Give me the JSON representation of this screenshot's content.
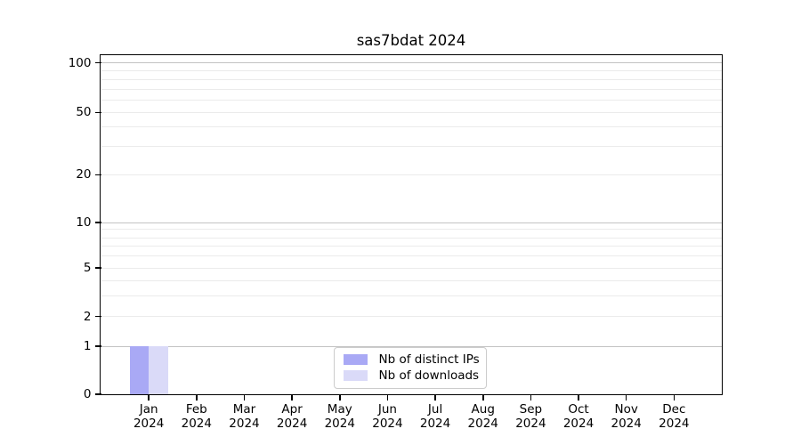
{
  "figure": {
    "title": "sas7bdat 2024"
  },
  "colors": {
    "distinct_ips": "#a9a9f5",
    "downloads": "#dadaf8",
    "grid_major": "#c3c3c3",
    "grid_minor": "#ebebeb",
    "axis": "#000000",
    "legend_border": "#cccccc",
    "background": "#ffffff"
  },
  "y_axis": {
    "labeled_ticks": [
      "100",
      "50",
      "20",
      "10",
      "5",
      "2",
      "1",
      "0"
    ],
    "labeled_tick_values": [
      100,
      50,
      20,
      10,
      5,
      2,
      1,
      0
    ],
    "minor_tick_values": [
      90,
      80,
      70,
      60,
      40,
      30,
      9,
      8,
      7,
      6,
      4,
      3
    ],
    "major_grid_values": [
      100,
      10,
      1
    ]
  },
  "x_axis": {
    "months": [
      "Jan",
      "Feb",
      "Mar",
      "Apr",
      "May",
      "Jun",
      "Jul",
      "Aug",
      "Sep",
      "Oct",
      "Nov",
      "Dec"
    ],
    "year": "2024"
  },
  "legend": {
    "items": [
      {
        "label": "Nb of distinct IPs",
        "color_key": "distinct_ips"
      },
      {
        "label": "Nb of downloads",
        "color_key": "downloads"
      }
    ]
  },
  "chart_data": {
    "type": "bar",
    "title": "sas7bdat 2024",
    "categories": [
      "Jan 2024",
      "Feb 2024",
      "Mar 2024",
      "Apr 2024",
      "May 2024",
      "Jun 2024",
      "Jul 2024",
      "Aug 2024",
      "Sep 2024",
      "Oct 2024",
      "Nov 2024",
      "Dec 2024"
    ],
    "series": [
      {
        "name": "Nb of distinct IPs",
        "color_key": "distinct_ips",
        "values": [
          1,
          0,
          0,
          0,
          0,
          0,
          0,
          0,
          0,
          0,
          0,
          0
        ]
      },
      {
        "name": "Nb of downloads",
        "color_key": "downloads",
        "values": [
          1,
          0,
          0,
          0,
          0,
          0,
          0,
          0,
          0,
          0,
          0,
          0
        ]
      }
    ],
    "xlabel": "",
    "ylabel": "",
    "y_scale": "symlog",
    "y_ticks": [
      0,
      1,
      2,
      5,
      10,
      20,
      50,
      100
    ],
    "ylim": [
      0,
      112
    ],
    "grid": "horizontal",
    "legend_position": "lower center"
  }
}
